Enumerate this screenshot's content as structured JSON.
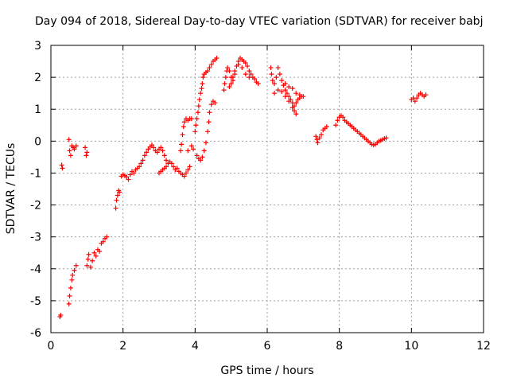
{
  "chart_data": {
    "type": "scatter",
    "title": "Day 094 of 2018, Sidereal Day-to-day VTEC variation (SDTVAR) for receiver babj",
    "xlabel": "GPS time / hours",
    "ylabel": "SDTVAR / TECUs",
    "xlim": [
      0,
      12
    ],
    "ylim": [
      -6,
      3
    ],
    "xticks": [
      "0",
      "2",
      "4",
      "6",
      "8",
      "10",
      "12"
    ],
    "yticks": [
      "-6",
      "-5",
      "-4",
      "-3",
      "-2",
      "-1",
      "0",
      "1",
      "2",
      "3"
    ],
    "grid": true,
    "marker": "plus",
    "color": "#ff0000",
    "series": [
      {
        "name": "SDTVAR",
        "points": [
          [
            0.25,
            -5.5
          ],
          [
            0.27,
            -5.45
          ],
          [
            0.3,
            -0.75
          ],
          [
            0.32,
            -0.85
          ],
          [
            0.5,
            0.05
          ],
          [
            0.52,
            -0.3
          ],
          [
            0.55,
            -0.45
          ],
          [
            0.58,
            -0.15
          ],
          [
            0.62,
            -0.2
          ],
          [
            0.65,
            -0.25
          ],
          [
            0.7,
            -0.15
          ],
          [
            0.5,
            -5.1
          ],
          [
            0.52,
            -4.85
          ],
          [
            0.55,
            -4.6
          ],
          [
            0.58,
            -4.35
          ],
          [
            0.6,
            -4.2
          ],
          [
            0.65,
            -4.05
          ],
          [
            0.7,
            -3.9
          ],
          [
            0.95,
            -0.2
          ],
          [
            0.98,
            -0.45
          ],
          [
            1.0,
            -0.35
          ],
          [
            1.0,
            -3.9
          ],
          [
            1.03,
            -3.7
          ],
          [
            1.05,
            -3.55
          ],
          [
            1.1,
            -3.95
          ],
          [
            1.15,
            -3.75
          ],
          [
            1.2,
            -3.5
          ],
          [
            1.25,
            -3.6
          ],
          [
            1.3,
            -3.4
          ],
          [
            1.35,
            -3.45
          ],
          [
            1.4,
            -3.2
          ],
          [
            1.45,
            -3.15
          ],
          [
            1.5,
            -3.05
          ],
          [
            1.55,
            -3.0
          ],
          [
            1.8,
            -2.1
          ],
          [
            1.82,
            -1.85
          ],
          [
            1.85,
            -1.7
          ],
          [
            1.88,
            -1.55
          ],
          [
            1.9,
            -1.6
          ],
          [
            1.95,
            -1.1
          ],
          [
            2.0,
            -1.05
          ],
          [
            2.05,
            -1.08
          ],
          [
            2.1,
            -1.12
          ],
          [
            2.15,
            -1.2
          ],
          [
            2.2,
            -1.05
          ],
          [
            2.25,
            -0.95
          ],
          [
            2.3,
            -1.0
          ],
          [
            2.35,
            -0.9
          ],
          [
            2.4,
            -0.85
          ],
          [
            2.45,
            -0.8
          ],
          [
            2.5,
            -0.7
          ],
          [
            2.55,
            -0.6
          ],
          [
            2.6,
            -0.45
          ],
          [
            2.65,
            -0.35
          ],
          [
            2.7,
            -0.25
          ],
          [
            2.75,
            -0.18
          ],
          [
            2.8,
            -0.12
          ],
          [
            2.85,
            -0.2
          ],
          [
            2.9,
            -0.3
          ],
          [
            2.95,
            -0.35
          ],
          [
            3.0,
            -0.25
          ],
          [
            3.05,
            -0.2
          ],
          [
            3.1,
            -0.3
          ],
          [
            3.15,
            -0.45
          ],
          [
            3.2,
            -0.6
          ],
          [
            3.0,
            -1.0
          ],
          [
            3.05,
            -0.95
          ],
          [
            3.1,
            -0.9
          ],
          [
            3.15,
            -0.85
          ],
          [
            3.2,
            -0.8
          ],
          [
            3.25,
            -0.7
          ],
          [
            3.3,
            -0.65
          ],
          [
            3.35,
            -0.7
          ],
          [
            3.4,
            -0.8
          ],
          [
            3.45,
            -0.9
          ],
          [
            3.5,
            -0.85
          ],
          [
            3.55,
            -0.95
          ],
          [
            3.6,
            -1.0
          ],
          [
            3.65,
            -1.05
          ],
          [
            3.7,
            -1.1
          ],
          [
            3.75,
            -1.0
          ],
          [
            3.8,
            -0.9
          ],
          [
            3.85,
            -0.8
          ],
          [
            3.6,
            -0.3
          ],
          [
            3.62,
            -0.1
          ],
          [
            3.65,
            0.2
          ],
          [
            3.68,
            0.45
          ],
          [
            3.7,
            0.6
          ],
          [
            3.75,
            0.7
          ],
          [
            3.8,
            0.65
          ],
          [
            3.85,
            0.7
          ],
          [
            3.9,
            0.7
          ],
          [
            3.8,
            -0.3
          ],
          [
            3.9,
            -0.15
          ],
          [
            3.95,
            -0.25
          ],
          [
            4.0,
            0.3
          ],
          [
            4.02,
            0.5
          ],
          [
            4.05,
            0.7
          ],
          [
            4.08,
            0.9
          ],
          [
            4.1,
            1.1
          ],
          [
            4.12,
            1.3
          ],
          [
            4.15,
            1.5
          ],
          [
            4.18,
            1.65
          ],
          [
            4.2,
            1.8
          ],
          [
            4.22,
            2.0
          ],
          [
            4.25,
            2.1
          ],
          [
            4.3,
            2.15
          ],
          [
            4.35,
            2.2
          ],
          [
            4.4,
            2.3
          ],
          [
            4.45,
            2.4
          ],
          [
            4.5,
            2.5
          ],
          [
            4.55,
            2.55
          ],
          [
            4.6,
            2.6
          ],
          [
            4.05,
            -0.45
          ],
          [
            4.1,
            -0.55
          ],
          [
            4.15,
            -0.6
          ],
          [
            4.2,
            -0.5
          ],
          [
            4.25,
            -0.3
          ],
          [
            4.3,
            -0.05
          ],
          [
            4.35,
            0.3
          ],
          [
            4.38,
            0.6
          ],
          [
            4.4,
            0.9
          ],
          [
            4.45,
            1.15
          ],
          [
            4.5,
            1.25
          ],
          [
            4.55,
            1.2
          ],
          [
            4.8,
            1.6
          ],
          [
            4.82,
            1.8
          ],
          [
            4.85,
            2.0
          ],
          [
            4.88,
            2.2
          ],
          [
            4.9,
            2.3
          ],
          [
            4.95,
            2.2
          ],
          [
            5.0,
            2.0
          ],
          [
            5.05,
            1.9
          ],
          [
            5.1,
            2.1
          ],
          [
            5.15,
            2.35
          ],
          [
            5.2,
            2.5
          ],
          [
            5.25,
            2.6
          ],
          [
            5.3,
            2.55
          ],
          [
            5.35,
            2.5
          ],
          [
            5.4,
            2.45
          ],
          [
            5.45,
            2.35
          ],
          [
            5.5,
            2.2
          ],
          [
            5.55,
            2.1
          ],
          [
            5.6,
            2.0
          ],
          [
            5.65,
            1.95
          ],
          [
            5.7,
            1.85
          ],
          [
            5.75,
            1.8
          ],
          [
            4.95,
            1.7
          ],
          [
            5.0,
            1.8
          ],
          [
            5.05,
            2.0
          ],
          [
            5.1,
            2.2
          ],
          [
            5.2,
            2.4
          ],
          [
            5.3,
            2.3
          ],
          [
            5.4,
            2.1
          ],
          [
            5.5,
            2.0
          ],
          [
            6.1,
            2.3
          ],
          [
            6.12,
            2.1
          ],
          [
            6.15,
            1.9
          ],
          [
            6.2,
            1.8
          ],
          [
            6.25,
            2.0
          ],
          [
            6.3,
            2.3
          ],
          [
            6.35,
            2.1
          ],
          [
            6.4,
            1.9
          ],
          [
            6.45,
            1.75
          ],
          [
            6.5,
            1.6
          ],
          [
            6.55,
            1.5
          ],
          [
            6.6,
            1.4
          ],
          [
            6.65,
            1.3
          ],
          [
            6.7,
            1.2
          ],
          [
            6.75,
            1.1
          ],
          [
            6.8,
            1.2
          ],
          [
            6.85,
            1.3
          ],
          [
            6.9,
            1.35
          ],
          [
            6.95,
            1.4
          ],
          [
            7.0,
            1.4
          ],
          [
            6.2,
            1.5
          ],
          [
            6.3,
            1.6
          ],
          [
            6.4,
            1.55
          ],
          [
            6.5,
            1.4
          ],
          [
            6.6,
            1.25
          ],
          [
            6.7,
            1.05
          ],
          [
            6.75,
            0.95
          ],
          [
            6.8,
            0.85
          ],
          [
            6.5,
            1.8
          ],
          [
            6.6,
            1.7
          ],
          [
            6.7,
            1.65
          ],
          [
            6.8,
            1.5
          ],
          [
            6.9,
            1.45
          ],
          [
            7.35,
            0.15
          ],
          [
            7.38,
            0.05
          ],
          [
            7.4,
            -0.05
          ],
          [
            7.45,
            0.1
          ],
          [
            7.5,
            0.2
          ],
          [
            7.55,
            0.35
          ],
          [
            7.6,
            0.4
          ],
          [
            7.65,
            0.45
          ],
          [
            7.9,
            0.5
          ],
          [
            7.95,
            0.65
          ],
          [
            8.0,
            0.75
          ],
          [
            8.05,
            0.8
          ],
          [
            8.1,
            0.75
          ],
          [
            8.15,
            0.65
          ],
          [
            8.2,
            0.6
          ],
          [
            8.25,
            0.55
          ],
          [
            8.3,
            0.5
          ],
          [
            8.35,
            0.45
          ],
          [
            8.4,
            0.4
          ],
          [
            8.45,
            0.35
          ],
          [
            8.5,
            0.3
          ],
          [
            8.55,
            0.25
          ],
          [
            8.6,
            0.2
          ],
          [
            8.65,
            0.15
          ],
          [
            8.7,
            0.1
          ],
          [
            8.75,
            0.05
          ],
          [
            8.8,
            0.0
          ],
          [
            8.85,
            -0.05
          ],
          [
            8.9,
            -0.1
          ],
          [
            8.95,
            -0.12
          ],
          [
            9.0,
            -0.1
          ],
          [
            9.05,
            -0.05
          ],
          [
            9.1,
            0.0
          ],
          [
            9.15,
            0.02
          ],
          [
            9.2,
            0.05
          ],
          [
            9.25,
            0.08
          ],
          [
            9.3,
            0.1
          ],
          [
            10.0,
            1.3
          ],
          [
            10.05,
            1.35
          ],
          [
            10.1,
            1.25
          ],
          [
            10.15,
            1.35
          ],
          [
            10.2,
            1.45
          ],
          [
            10.25,
            1.5
          ],
          [
            10.3,
            1.45
          ],
          [
            10.35,
            1.4
          ],
          [
            10.4,
            1.45
          ]
        ]
      }
    ]
  }
}
